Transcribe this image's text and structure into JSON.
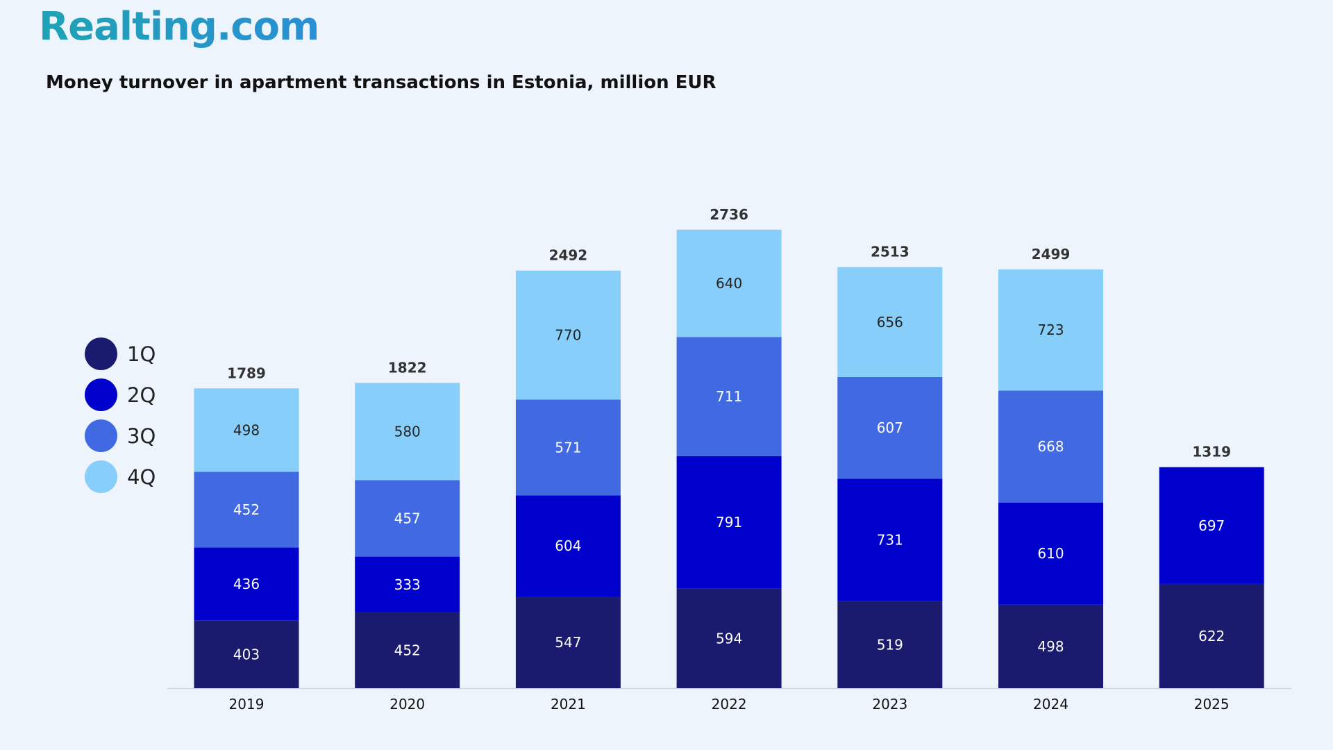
{
  "brand": {
    "logo_text": "Realting.com"
  },
  "chart_data": {
    "type": "bar",
    "stacked": true,
    "title": "Money turnover in apartment transactions in Estonia, million EUR",
    "xlabel": "",
    "ylabel": "",
    "ylim": [
      0,
      3000
    ],
    "grid": false,
    "legend_position": "left",
    "categories": [
      "2019",
      "2020",
      "2021",
      "2022",
      "2023",
      "2024",
      "2025"
    ],
    "totals": [
      1789,
      1822,
      2492,
      2736,
      2513,
      2499,
      1319
    ],
    "series": [
      {
        "name": "1Q",
        "color": "#1a1a6e",
        "label_color": "#ffffff",
        "values": [
          403,
          452,
          547,
          594,
          519,
          498,
          622
        ]
      },
      {
        "name": "2Q",
        "color": "#0000cd",
        "label_color": "#ffffff",
        "values": [
          436,
          333,
          604,
          791,
          731,
          610,
          697
        ]
      },
      {
        "name": "3Q",
        "color": "#4169e1",
        "label_color": "#ffffff",
        "values": [
          452,
          457,
          571,
          711,
          607,
          668,
          null
        ]
      },
      {
        "name": "4Q",
        "color": "#87cefa",
        "label_color": "#222222",
        "values": [
          498,
          580,
          770,
          640,
          656,
          723,
          null
        ]
      }
    ]
  }
}
